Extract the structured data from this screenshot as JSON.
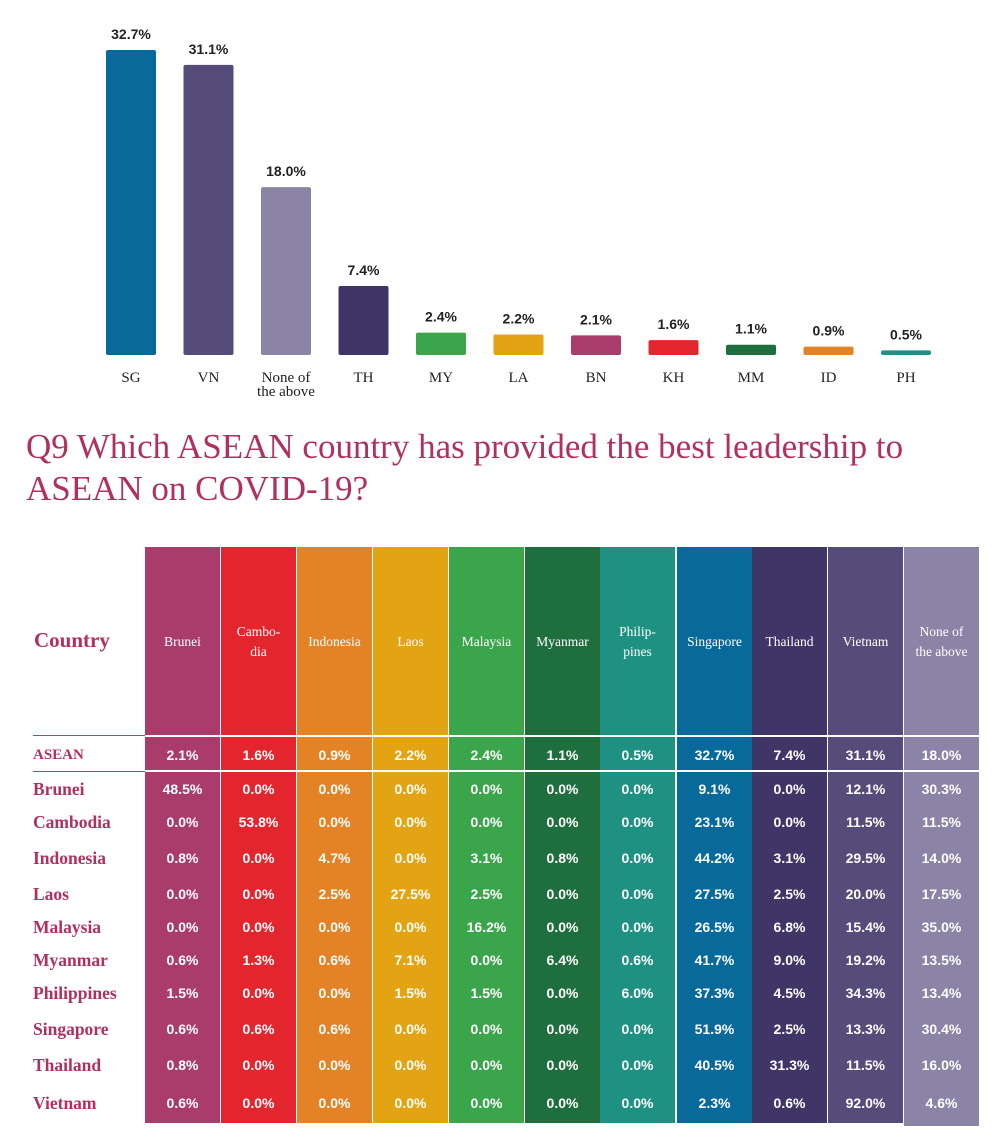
{
  "colors": {
    "SG": "#086a9a",
    "VN": "#564c7a",
    "NONE": "#8b84a6",
    "TH": "#3f3566",
    "MY": "#3aa54a",
    "LA": "#e3a414",
    "BN": "#a93c6a",
    "KH": "#e3262e",
    "MM": "#1e6e3e",
    "ID": "#e48325",
    "PH": "#1f9183",
    "accent": "#b0305f",
    "label": "#222222"
  },
  "chart_data": {
    "type": "bar",
    "title": "",
    "categories": [
      "SG",
      "VN",
      "None of\nthe above",
      "TH",
      "MY",
      "LA",
      "BN",
      "KH",
      "MM",
      "ID",
      "PH"
    ],
    "color_keys": [
      "SG",
      "VN",
      "NONE",
      "TH",
      "MY",
      "LA",
      "BN",
      "KH",
      "MM",
      "ID",
      "PH"
    ],
    "values": [
      32.7,
      31.1,
      18.0,
      7.4,
      2.4,
      2.2,
      2.1,
      1.6,
      1.1,
      0.9,
      0.5
    ],
    "value_labels": [
      "32.7%",
      "31.1%",
      "18.0%",
      "7.4%",
      "2.4%",
      "2.2%",
      "2.1%",
      "1.6%",
      "1.1%",
      "0.9%",
      "0.5%"
    ],
    "ylim": [
      0,
      32.7
    ],
    "xlabel": "",
    "ylabel": "",
    "grid": false
  },
  "question": "Q9 Which ASEAN country has provided the best leadership to ASEAN on COVID-19?",
  "table": {
    "country_header": "Country",
    "columns": [
      {
        "label": "Brunei",
        "color": "BN"
      },
      {
        "label": "Cambo-\ndia",
        "color": "KH"
      },
      {
        "label": "Indonesia",
        "color": "ID"
      },
      {
        "label": "Laos",
        "color": "LA"
      },
      {
        "label": "Malaysia",
        "color": "MY"
      },
      {
        "label": "Myanmar",
        "color": "MM"
      },
      {
        "label": "Philip-\npines",
        "color": "PH"
      },
      {
        "label": "Singapore",
        "color": "SG"
      },
      {
        "label": "Thailand",
        "color": "TH"
      },
      {
        "label": "Vietnam",
        "color": "VN"
      },
      {
        "label": "None of\nthe above",
        "color": "NONE"
      }
    ],
    "rows": [
      {
        "label": "ASEAN",
        "values": [
          "2.1%",
          "1.6%",
          "0.9%",
          "2.2%",
          "2.4%",
          "1.1%",
          "0.5%",
          "32.7%",
          "7.4%",
          "31.1%",
          "18.0%"
        ]
      },
      {
        "label": "Brunei",
        "values": [
          "48.5%",
          "0.0%",
          "0.0%",
          "0.0%",
          "0.0%",
          "0.0%",
          "0.0%",
          "9.1%",
          "0.0%",
          "12.1%",
          "30.3%"
        ]
      },
      {
        "label": "Cambodia",
        "values": [
          "0.0%",
          "53.8%",
          "0.0%",
          "0.0%",
          "0.0%",
          "0.0%",
          "0.0%",
          "23.1%",
          "0.0%",
          "11.5%",
          "11.5%"
        ]
      },
      {
        "label": "Indonesia",
        "values": [
          "0.8%",
          "0.0%",
          "4.7%",
          "0.0%",
          "3.1%",
          "0.8%",
          "0.0%",
          "44.2%",
          "3.1%",
          "29.5%",
          "14.0%"
        ]
      },
      {
        "label": "Laos",
        "values": [
          "0.0%",
          "0.0%",
          "2.5%",
          "27.5%",
          "2.5%",
          "0.0%",
          "0.0%",
          "27.5%",
          "2.5%",
          "20.0%",
          "17.5%"
        ]
      },
      {
        "label": "Malaysia",
        "values": [
          "0.0%",
          "0.0%",
          "0.0%",
          "0.0%",
          "16.2%",
          "0.0%",
          "0.0%",
          "26.5%",
          "6.8%",
          "15.4%",
          "35.0%"
        ]
      },
      {
        "label": "Myanmar",
        "values": [
          "0.6%",
          "1.3%",
          "0.6%",
          "7.1%",
          "0.0%",
          "6.4%",
          "0.6%",
          "41.7%",
          "9.0%",
          "19.2%",
          "13.5%"
        ]
      },
      {
        "label": "Philippines",
        "values": [
          "1.5%",
          "0.0%",
          "0.0%",
          "1.5%",
          "1.5%",
          "0.0%",
          "6.0%",
          "37.3%",
          "4.5%",
          "34.3%",
          "13.4%"
        ]
      },
      {
        "label": "Singapore",
        "values": [
          "0.6%",
          "0.6%",
          "0.6%",
          "0.0%",
          "0.0%",
          "0.0%",
          "0.0%",
          "51.9%",
          "2.5%",
          "13.3%",
          "30.4%"
        ]
      },
      {
        "label": "Thailand",
        "values": [
          "0.8%",
          "0.0%",
          "0.0%",
          "0.0%",
          "0.0%",
          "0.0%",
          "0.0%",
          "40.5%",
          "31.3%",
          "11.5%",
          "16.0%"
        ]
      },
      {
        "label": "Vietnam",
        "values": [
          "0.6%",
          "0.0%",
          "0.0%",
          "0.0%",
          "0.0%",
          "0.0%",
          "0.0%",
          "2.3%",
          "0.6%",
          "92.0%",
          "4.6%"
        ]
      }
    ]
  }
}
